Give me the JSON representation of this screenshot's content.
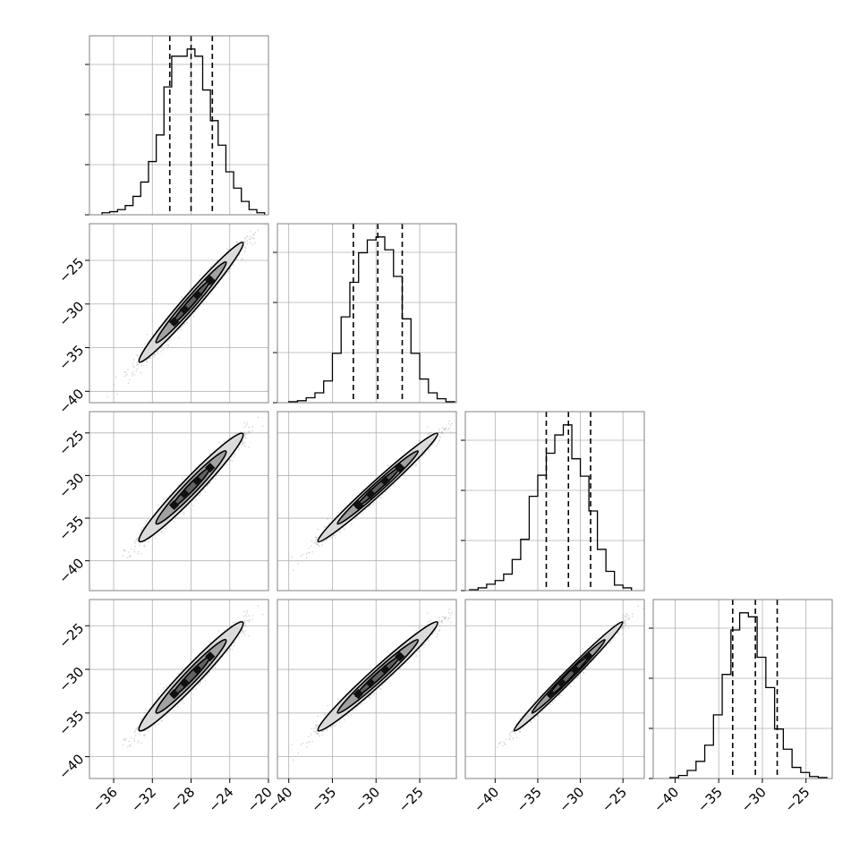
{
  "chart_data": {
    "type": "corner",
    "colors": {
      "background": "#ffffff",
      "frame": "#808080",
      "grid": "#b0b0b0",
      "histogram": "#000000",
      "quantile_lines": "#000000",
      "points": "#555555",
      "contour_outer": "#d9d9d9",
      "contour_inner": "#9a9a9a",
      "contour_line": "#000000"
    },
    "grid": true,
    "tick_label_rotation": 45,
    "parameters": [
      {
        "id": "p0",
        "range": [
          -38.5,
          -20
        ],
        "ticks": [
          -36,
          -32,
          -28,
          -24,
          -20
        ],
        "tick_labels": [
          "−36",
          "−32",
          "−28",
          "−24",
          "−20"
        ],
        "quantiles": [
          -30.2,
          -28.0,
          -25.8
        ],
        "histogram": {
          "edges": [
            -37.2,
            -36.4,
            -35.6,
            -34.8,
            -34.0,
            -33.2,
            -32.4,
            -31.6,
            -30.8,
            -30.0,
            -29.2,
            -28.4,
            -27.6,
            -26.8,
            -26.0,
            -25.2,
            -24.4,
            -23.6,
            -22.8,
            -22.0,
            -21.2,
            -20.4
          ],
          "counts": [
            2,
            3,
            5,
            9,
            18,
            32,
            52,
            78,
            125,
            155,
            155,
            162,
            155,
            122,
            92,
            68,
            42,
            26,
            13,
            5,
            2
          ]
        }
      },
      {
        "id": "p1",
        "range": [
          -41.3,
          -20.8
        ],
        "ticks": [
          -40,
          -35,
          -30,
          -25
        ],
        "tick_labels": [
          "−40",
          "−35",
          "−30",
          "−25"
        ],
        "quantiles": [
          -32.6,
          -29.8,
          -27.0
        ],
        "histogram": {
          "edges": [
            -40.0,
            -39.0,
            -38.0,
            -37.0,
            -36.0,
            -35.0,
            -34.0,
            -33.0,
            -32.0,
            -31.0,
            -30.0,
            -29.0,
            -28.0,
            -27.0,
            -26.0,
            -25.0,
            -24.0,
            -23.0,
            -22.0,
            -21.0
          ],
          "counts": [
            1,
            2,
            5,
            10,
            22,
            50,
            87,
            122,
            152,
            165,
            168,
            155,
            128,
            85,
            50,
            24,
            10,
            4,
            1
          ]
        }
      },
      {
        "id": "p2",
        "range": [
          -43.5,
          -22.5
        ],
        "ticks": [
          -40,
          -35,
          -30,
          -25
        ],
        "tick_labels": [
          "−40",
          "−35",
          "−30",
          "−25"
        ],
        "quantiles": [
          -34.0,
          -31.4,
          -28.8
        ],
        "histogram": {
          "edges": [
            -43.0,
            -42.0,
            -41.0,
            -40.0,
            -39.0,
            -38.0,
            -37.0,
            -36.0,
            -35.0,
            -34.0,
            -33.0,
            -32.0,
            -31.0,
            -30.0,
            -29.0,
            -28.0,
            -27.0,
            -26.0,
            -25.0,
            -24.0
          ],
          "counts": [
            1,
            3,
            7,
            11,
            18,
            34,
            56,
            103,
            126,
            150,
            170,
            181,
            144,
            125,
            87,
            45,
            21,
            6,
            3
          ]
        }
      },
      {
        "id": "p3",
        "range": [
          -42.5,
          -22.0
        ],
        "ticks": [
          -40,
          -35,
          -30,
          -25
        ],
        "tick_labels": [
          "−40",
          "−35",
          "−30",
          "−25"
        ],
        "quantiles": [
          -33.4,
          -30.8,
          -28.3
        ],
        "histogram": {
          "edges": [
            -40.6,
            -39.6,
            -38.6,
            -37.6,
            -36.6,
            -35.6,
            -34.6,
            -33.6,
            -32.6,
            -31.6,
            -30.6,
            -29.6,
            -28.6,
            -27.6,
            -26.6,
            -25.6,
            -24.6,
            -23.6,
            -22.6
          ],
          "counts": [
            1,
            3,
            8,
            17,
            33,
            63,
            103,
            147,
            164,
            160,
            120,
            90,
            49,
            29,
            11,
            6,
            2,
            1
          ]
        }
      }
    ],
    "pairs": [
      {
        "x": "p0",
        "y": "p1",
        "center": [
          -28.0,
          -29.8
        ],
        "sd": [
          2.2,
          2.8
        ],
        "correlation": 0.98
      },
      {
        "x": "p0",
        "y": "p2",
        "center": [
          -28.0,
          -31.4
        ],
        "sd": [
          2.2,
          2.6
        ],
        "correlation": 0.97
      },
      {
        "x": "p1",
        "y": "p2",
        "center": [
          -29.8,
          -31.4
        ],
        "sd": [
          2.8,
          2.6
        ],
        "correlation": 0.985
      },
      {
        "x": "p0",
        "y": "p3",
        "center": [
          -28.0,
          -30.8
        ],
        "sd": [
          2.2,
          2.55
        ],
        "correlation": 0.97
      },
      {
        "x": "p1",
        "y": "p3",
        "center": [
          -29.8,
          -30.8
        ],
        "sd": [
          2.8,
          2.55
        ],
        "correlation": 0.98
      },
      {
        "x": "p2",
        "y": "p3",
        "center": [
          -31.4,
          -30.8
        ],
        "sd": [
          2.6,
          2.55
        ],
        "correlation": 0.99
      }
    ]
  }
}
